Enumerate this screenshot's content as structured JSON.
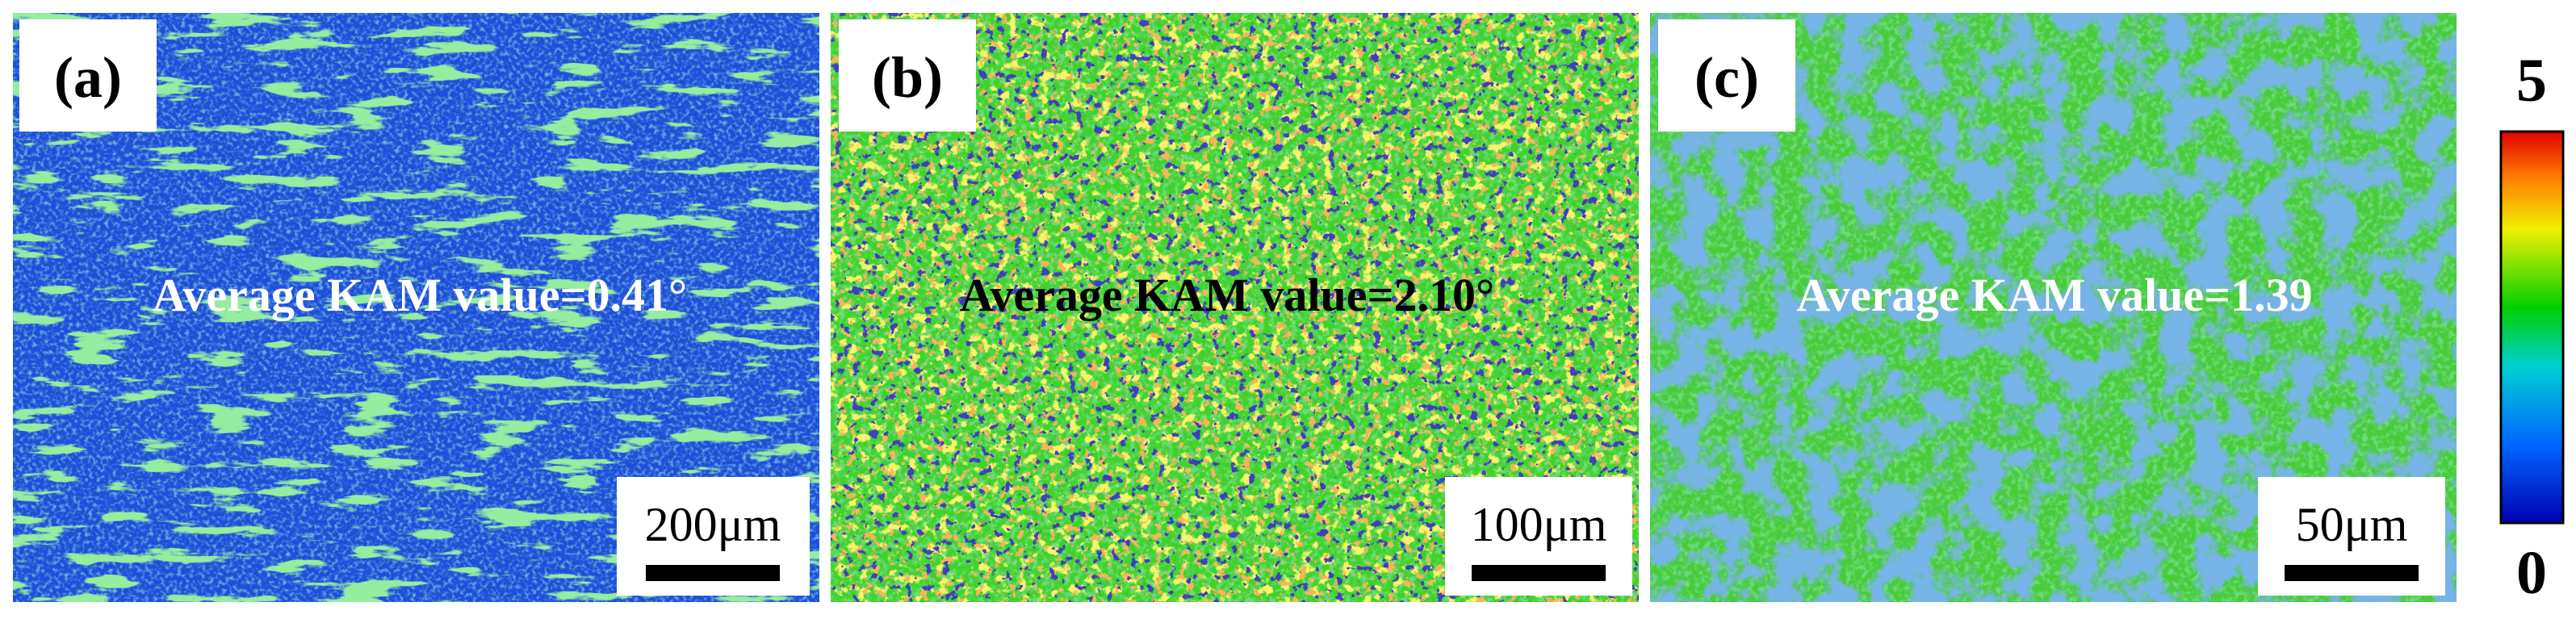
{
  "panels": [
    {
      "label": "(a)",
      "annotation": "Average KAM value=0.41°",
      "scale_bar": "200μm"
    },
    {
      "label": "(b)",
      "annotation": "Average KAM value=2.10°",
      "scale_bar": "100μm"
    },
    {
      "label": "(c)",
      "annotation": "Average KAM value=1.39",
      "scale_bar": "50μm"
    }
  ],
  "colorbar": {
    "max": 5,
    "min": 0
  }
}
